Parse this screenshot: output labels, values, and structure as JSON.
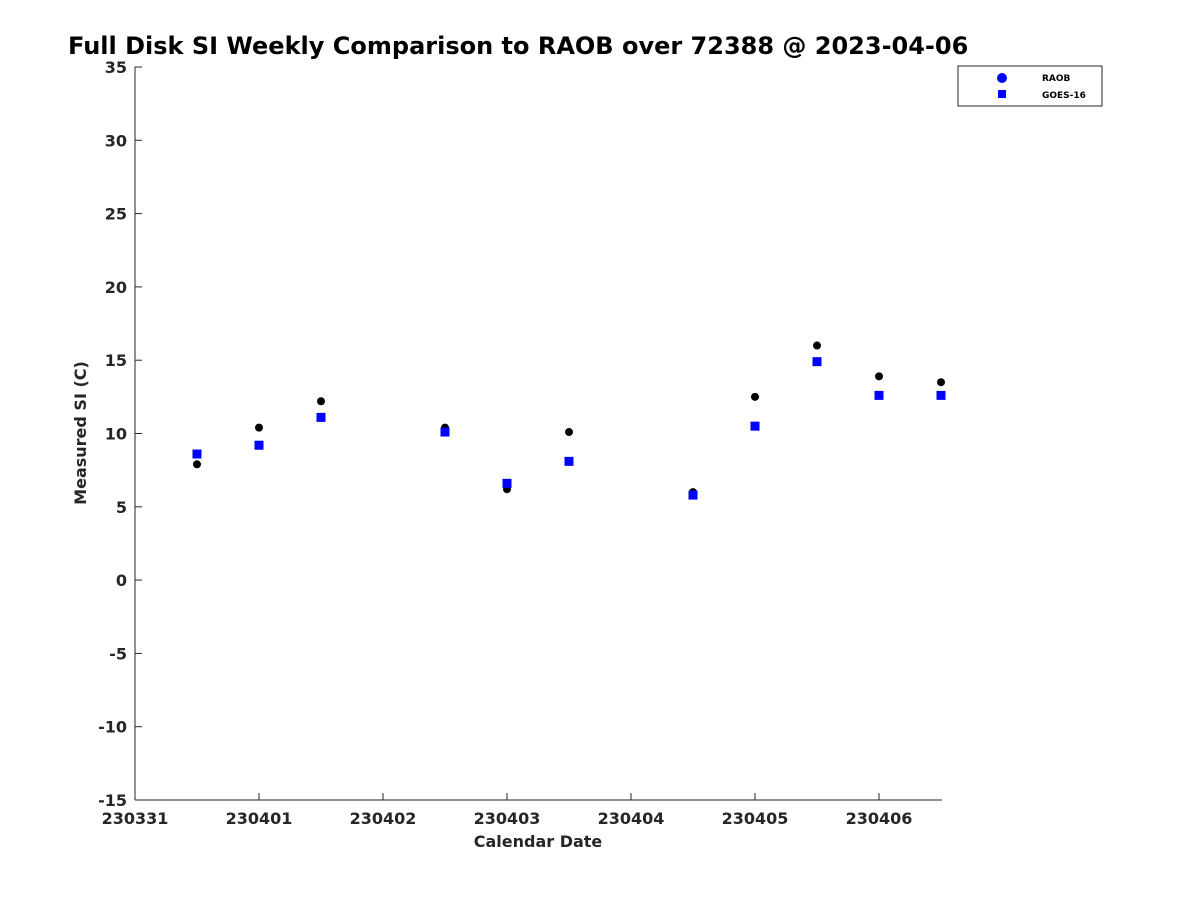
{
  "chart_data": {
    "type": "scatter",
    "title": "Full Disk SI Weekly Comparison to RAOB over 72388 @ 2023-04-06",
    "xlabel": "Calendar Date",
    "ylabel": "Measured SI (C)",
    "xlim": [
      "230331",
      "230406 12Z"
    ],
    "ylim": [
      -15,
      35
    ],
    "x_tick_labels": [
      "230331",
      "230401",
      "230402",
      "230403",
      "230404",
      "230405",
      "230406"
    ],
    "y_ticks": [
      -15,
      -10,
      -5,
      0,
      5,
      10,
      15,
      20,
      25,
      30,
      35
    ],
    "grid": false,
    "legend_position": "top-right",
    "series": [
      {
        "name": "RAOB",
        "marker": "circle",
        "color": "#000000",
        "legend_color": "#0000ff",
        "points": [
          {
            "x": "230331 12Z",
            "y": 7.9
          },
          {
            "x": "230401 00Z",
            "y": 10.4
          },
          {
            "x": "230401 12Z",
            "y": 12.2
          },
          {
            "x": "230402 12Z",
            "y": 10.4
          },
          {
            "x": "230403 00Z",
            "y": 6.2
          },
          {
            "x": "230403 12Z",
            "y": 10.1
          },
          {
            "x": "230404 12Z",
            "y": 6.0
          },
          {
            "x": "230405 00Z",
            "y": 12.5
          },
          {
            "x": "230405 12Z",
            "y": 16.0
          },
          {
            "x": "230406 00Z",
            "y": 13.9
          },
          {
            "x": "230406 12Z",
            "y": 13.5
          }
        ]
      },
      {
        "name": "GOES-16",
        "marker": "square",
        "color": "#0000ff",
        "points": [
          {
            "x": "230331 12Z",
            "y": 8.6
          },
          {
            "x": "230401 00Z",
            "y": 9.2
          },
          {
            "x": "230401 12Z",
            "y": 11.1
          },
          {
            "x": "230402 12Z",
            "y": 10.1
          },
          {
            "x": "230403 00Z",
            "y": 6.6
          },
          {
            "x": "230403 12Z",
            "y": 8.1
          },
          {
            "x": "230404 12Z",
            "y": 5.8
          },
          {
            "x": "230405 00Z",
            "y": 10.5
          },
          {
            "x": "230405 12Z",
            "y": 14.9
          },
          {
            "x": "230406 00Z",
            "y": 12.6
          },
          {
            "x": "230406 12Z",
            "y": 12.6
          }
        ]
      }
    ]
  }
}
